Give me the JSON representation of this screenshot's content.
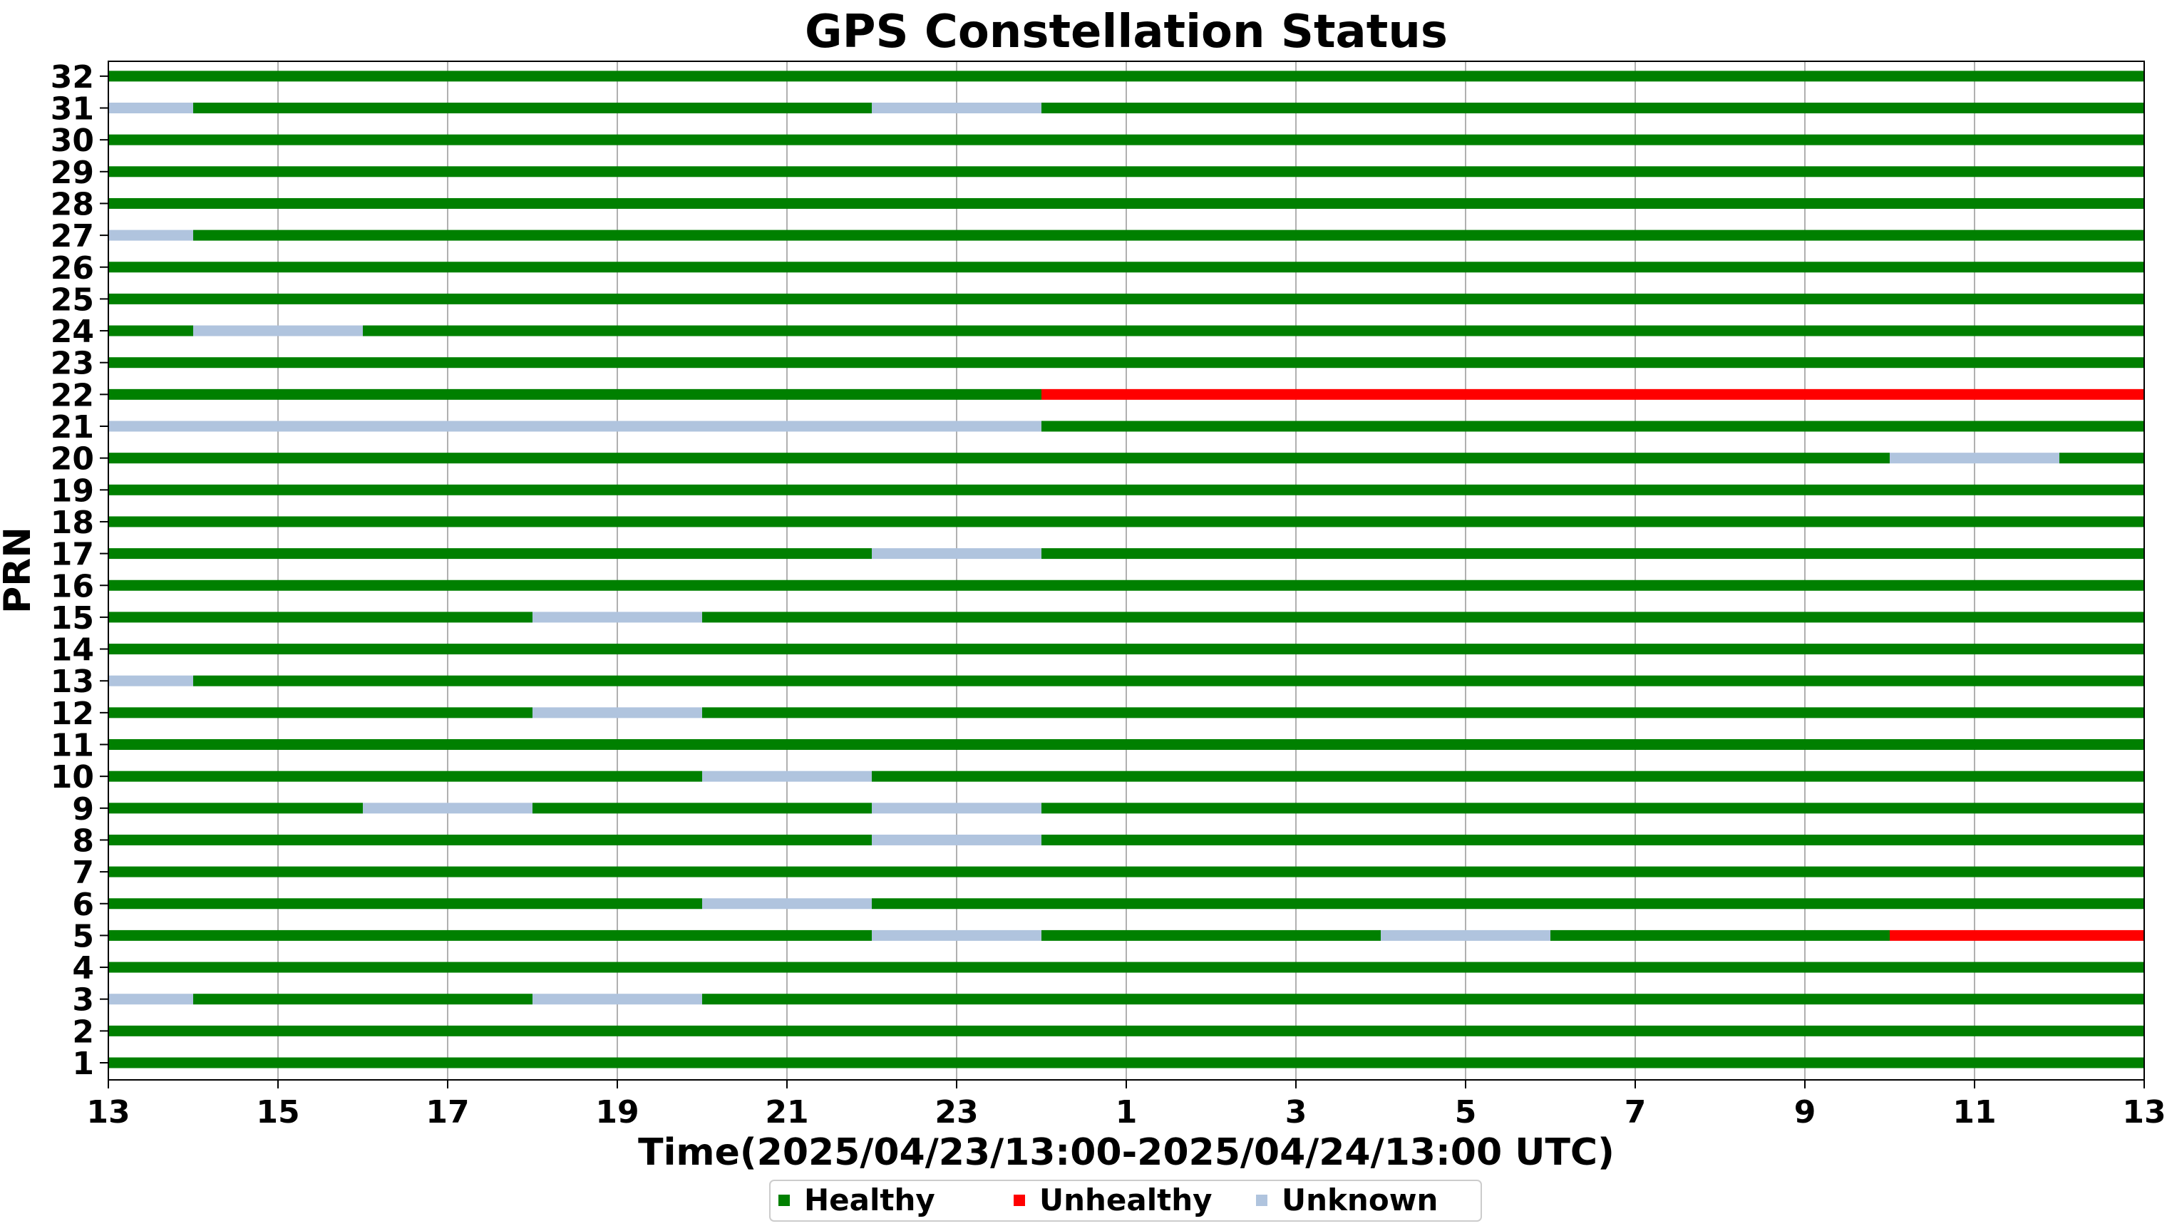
{
  "chart_data": {
    "type": "timeline",
    "title": "GPS Constellation Status",
    "xlabel": "Time(2025/04/23/13:00-2025/04/24/13:00 UTC)",
    "ylabel": "PRN",
    "x_range_hours": [
      0,
      24
    ],
    "x_ticks": [
      {
        "hour": 0,
        "label": "13"
      },
      {
        "hour": 2,
        "label": "15"
      },
      {
        "hour": 4,
        "label": "17"
      },
      {
        "hour": 6,
        "label": "19"
      },
      {
        "hour": 8,
        "label": "21"
      },
      {
        "hour": 10,
        "label": "23"
      },
      {
        "hour": 12,
        "label": "1"
      },
      {
        "hour": 14,
        "label": "3"
      },
      {
        "hour": 16,
        "label": "5"
      },
      {
        "hour": 18,
        "label": "7"
      },
      {
        "hour": 20,
        "label": "9"
      },
      {
        "hour": 22,
        "label": "11"
      },
      {
        "hour": 24,
        "label": "13"
      }
    ],
    "grid": "vertical",
    "legend_position": "bottom-center",
    "statuses": [
      {
        "name": "Healthy",
        "color": "#008000"
      },
      {
        "name": "Unhealthy",
        "color": "#ff0000"
      },
      {
        "name": "Unknown",
        "color": "#b0c4de"
      }
    ],
    "satellites": [
      {
        "prn": "1",
        "segments": [
          {
            "start": 0,
            "end": 24,
            "status": "Healthy"
          }
        ]
      },
      {
        "prn": "2",
        "segments": [
          {
            "start": 0,
            "end": 24,
            "status": "Healthy"
          }
        ]
      },
      {
        "prn": "3",
        "segments": [
          {
            "start": 0,
            "end": 1,
            "status": "Unknown"
          },
          {
            "start": 1,
            "end": 5,
            "status": "Healthy"
          },
          {
            "start": 5,
            "end": 7,
            "status": "Unknown"
          },
          {
            "start": 7,
            "end": 24,
            "status": "Healthy"
          }
        ]
      },
      {
        "prn": "4",
        "segments": [
          {
            "start": 0,
            "end": 24,
            "status": "Healthy"
          }
        ]
      },
      {
        "prn": "5",
        "segments": [
          {
            "start": 0,
            "end": 9,
            "status": "Healthy"
          },
          {
            "start": 9,
            "end": 11,
            "status": "Unknown"
          },
          {
            "start": 11,
            "end": 15,
            "status": "Healthy"
          },
          {
            "start": 15,
            "end": 17,
            "status": "Unknown"
          },
          {
            "start": 17,
            "end": 21,
            "status": "Healthy"
          },
          {
            "start": 21,
            "end": 24,
            "status": "Unhealthy"
          }
        ]
      },
      {
        "prn": "6",
        "segments": [
          {
            "start": 0,
            "end": 7,
            "status": "Healthy"
          },
          {
            "start": 7,
            "end": 9,
            "status": "Unknown"
          },
          {
            "start": 9,
            "end": 24,
            "status": "Healthy"
          }
        ]
      },
      {
        "prn": "7",
        "segments": [
          {
            "start": 0,
            "end": 24,
            "status": "Healthy"
          }
        ]
      },
      {
        "prn": "8",
        "segments": [
          {
            "start": 0,
            "end": 9,
            "status": "Healthy"
          },
          {
            "start": 9,
            "end": 11,
            "status": "Unknown"
          },
          {
            "start": 11,
            "end": 24,
            "status": "Healthy"
          }
        ]
      },
      {
        "prn": "9",
        "segments": [
          {
            "start": 0,
            "end": 3,
            "status": "Healthy"
          },
          {
            "start": 3,
            "end": 5,
            "status": "Unknown"
          },
          {
            "start": 5,
            "end": 9,
            "status": "Healthy"
          },
          {
            "start": 9,
            "end": 11,
            "status": "Unknown"
          },
          {
            "start": 11,
            "end": 24,
            "status": "Healthy"
          }
        ]
      },
      {
        "prn": "10",
        "segments": [
          {
            "start": 0,
            "end": 7,
            "status": "Healthy"
          },
          {
            "start": 7,
            "end": 9,
            "status": "Unknown"
          },
          {
            "start": 9,
            "end": 24,
            "status": "Healthy"
          }
        ]
      },
      {
        "prn": "11",
        "segments": [
          {
            "start": 0,
            "end": 24,
            "status": "Healthy"
          }
        ]
      },
      {
        "prn": "12",
        "segments": [
          {
            "start": 0,
            "end": 5,
            "status": "Healthy"
          },
          {
            "start": 5,
            "end": 7,
            "status": "Unknown"
          },
          {
            "start": 7,
            "end": 24,
            "status": "Healthy"
          }
        ]
      },
      {
        "prn": "13",
        "segments": [
          {
            "start": 0,
            "end": 1,
            "status": "Unknown"
          },
          {
            "start": 1,
            "end": 24,
            "status": "Healthy"
          }
        ]
      },
      {
        "prn": "14",
        "segments": [
          {
            "start": 0,
            "end": 24,
            "status": "Healthy"
          }
        ]
      },
      {
        "prn": "15",
        "segments": [
          {
            "start": 0,
            "end": 5,
            "status": "Healthy"
          },
          {
            "start": 5,
            "end": 7,
            "status": "Unknown"
          },
          {
            "start": 7,
            "end": 24,
            "status": "Healthy"
          }
        ]
      },
      {
        "prn": "16",
        "segments": [
          {
            "start": 0,
            "end": 24,
            "status": "Healthy"
          }
        ]
      },
      {
        "prn": "17",
        "segments": [
          {
            "start": 0,
            "end": 9,
            "status": "Healthy"
          },
          {
            "start": 9,
            "end": 11,
            "status": "Unknown"
          },
          {
            "start": 11,
            "end": 24,
            "status": "Healthy"
          }
        ]
      },
      {
        "prn": "18",
        "segments": [
          {
            "start": 0,
            "end": 24,
            "status": "Healthy"
          }
        ]
      },
      {
        "prn": "19",
        "segments": [
          {
            "start": 0,
            "end": 24,
            "status": "Healthy"
          }
        ]
      },
      {
        "prn": "20",
        "segments": [
          {
            "start": 0,
            "end": 21,
            "status": "Healthy"
          },
          {
            "start": 21,
            "end": 23,
            "status": "Unknown"
          },
          {
            "start": 23,
            "end": 24,
            "status": "Healthy"
          }
        ]
      },
      {
        "prn": "21",
        "segments": [
          {
            "start": 0,
            "end": 11,
            "status": "Unknown"
          },
          {
            "start": 11,
            "end": 24,
            "status": "Healthy"
          }
        ]
      },
      {
        "prn": "22",
        "segments": [
          {
            "start": 0,
            "end": 11,
            "status": "Healthy"
          },
          {
            "start": 11,
            "end": 24,
            "status": "Unhealthy"
          }
        ]
      },
      {
        "prn": "23",
        "segments": [
          {
            "start": 0,
            "end": 24,
            "status": "Healthy"
          }
        ]
      },
      {
        "prn": "24",
        "segments": [
          {
            "start": 0,
            "end": 1,
            "status": "Healthy"
          },
          {
            "start": 1,
            "end": 3,
            "status": "Unknown"
          },
          {
            "start": 3,
            "end": 24,
            "status": "Healthy"
          }
        ]
      },
      {
        "prn": "25",
        "segments": [
          {
            "start": 0,
            "end": 24,
            "status": "Healthy"
          }
        ]
      },
      {
        "prn": "26",
        "segments": [
          {
            "start": 0,
            "end": 24,
            "status": "Healthy"
          }
        ]
      },
      {
        "prn": "27",
        "segments": [
          {
            "start": 0,
            "end": 1,
            "status": "Unknown"
          },
          {
            "start": 1,
            "end": 24,
            "status": "Healthy"
          }
        ]
      },
      {
        "prn": "28",
        "segments": [
          {
            "start": 0,
            "end": 24,
            "status": "Healthy"
          }
        ]
      },
      {
        "prn": "29",
        "segments": [
          {
            "start": 0,
            "end": 24,
            "status": "Healthy"
          }
        ]
      },
      {
        "prn": "30",
        "segments": [
          {
            "start": 0,
            "end": 24,
            "status": "Healthy"
          }
        ]
      },
      {
        "prn": "31",
        "segments": [
          {
            "start": 0,
            "end": 1,
            "status": "Unknown"
          },
          {
            "start": 1,
            "end": 9,
            "status": "Healthy"
          },
          {
            "start": 9,
            "end": 11,
            "status": "Unknown"
          },
          {
            "start": 11,
            "end": 24,
            "status": "Healthy"
          }
        ]
      },
      {
        "prn": "32",
        "segments": [
          {
            "start": 0,
            "end": 24,
            "status": "Healthy"
          }
        ]
      }
    ]
  }
}
